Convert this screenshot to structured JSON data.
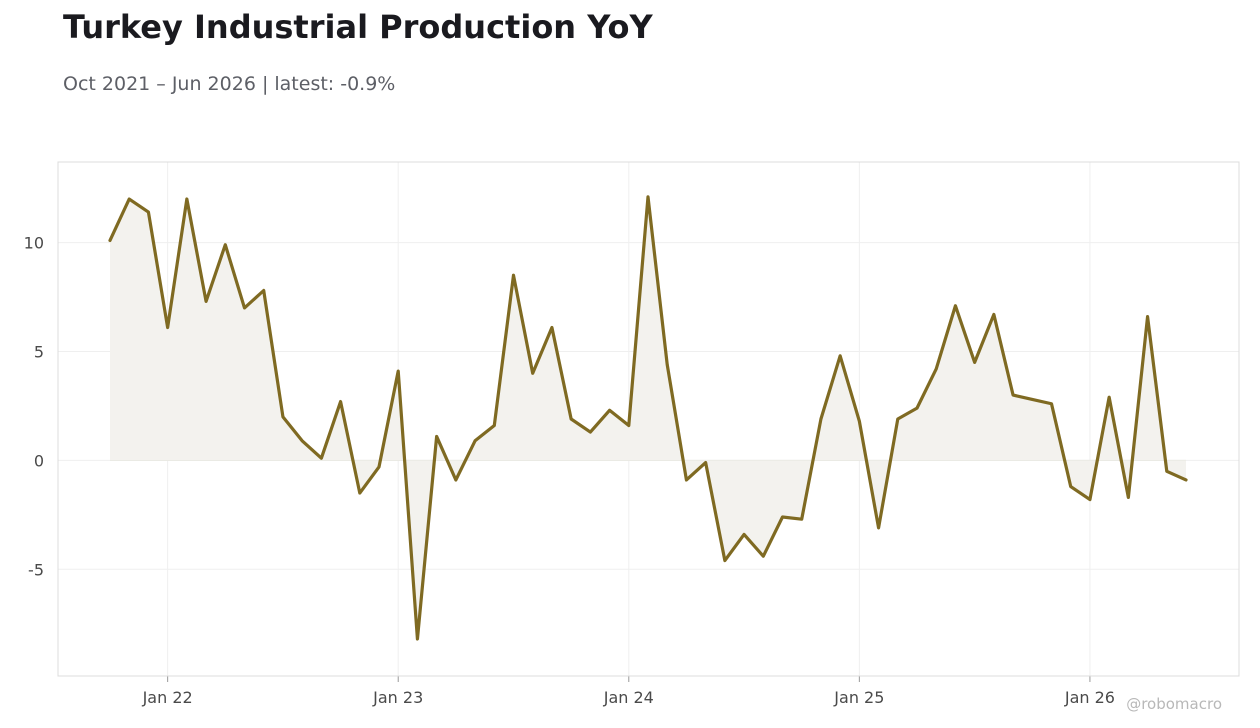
{
  "header": {
    "title": "Turkey Industrial Production YoY",
    "subtitle": "Oct 2021 – Jun 2026 | latest: -0.9%"
  },
  "watermark": "@robomacro",
  "colors": {
    "line": "#7f6a22",
    "fill": "#f3f2ee",
    "grid": "#efefef",
    "frame": "#dcdcdc",
    "zero_line": "#e2e0da"
  },
  "chart_data": {
    "type": "area",
    "x_start": "2021-10",
    "x_end": "2026-06",
    "xtick_labels": [
      "Jan 22",
      "Jan 23",
      "Jan 24",
      "Jan 25",
      "Jan 26"
    ],
    "xtick_months": [
      "2022-01",
      "2023-01",
      "2024-01",
      "2025-01",
      "2026-01"
    ],
    "yticks": [
      10,
      5,
      0,
      -5
    ],
    "ytick_labels": [
      "10",
      "5",
      "0",
      "-5"
    ],
    "ylim": [
      -9.9,
      13.7
    ],
    "grid": true,
    "series": [
      {
        "values": [
          10.1,
          12.0,
          11.4,
          6.1,
          12.0,
          7.3,
          9.9,
          7.0,
          7.8,
          2.0,
          0.9,
          0.1,
          2.7,
          -1.5,
          -0.3,
          4.1,
          -8.2,
          1.1,
          -0.9,
          0.9,
          1.6,
          8.5,
          4.0,
          6.1,
          1.9,
          1.3,
          2.3,
          1.6,
          12.1,
          4.4,
          -0.9,
          -0.1,
          -4.6,
          -3.4,
          -4.4,
          -2.6,
          -2.7,
          1.9,
          4.8,
          1.8,
          -3.1,
          1.9,
          2.4,
          4.2,
          7.1,
          4.5,
          6.7,
          3.0,
          2.8,
          2.6,
          -1.2,
          -1.8,
          2.9,
          -1.7,
          6.6,
          -0.5,
          -0.9
        ]
      }
    ]
  }
}
